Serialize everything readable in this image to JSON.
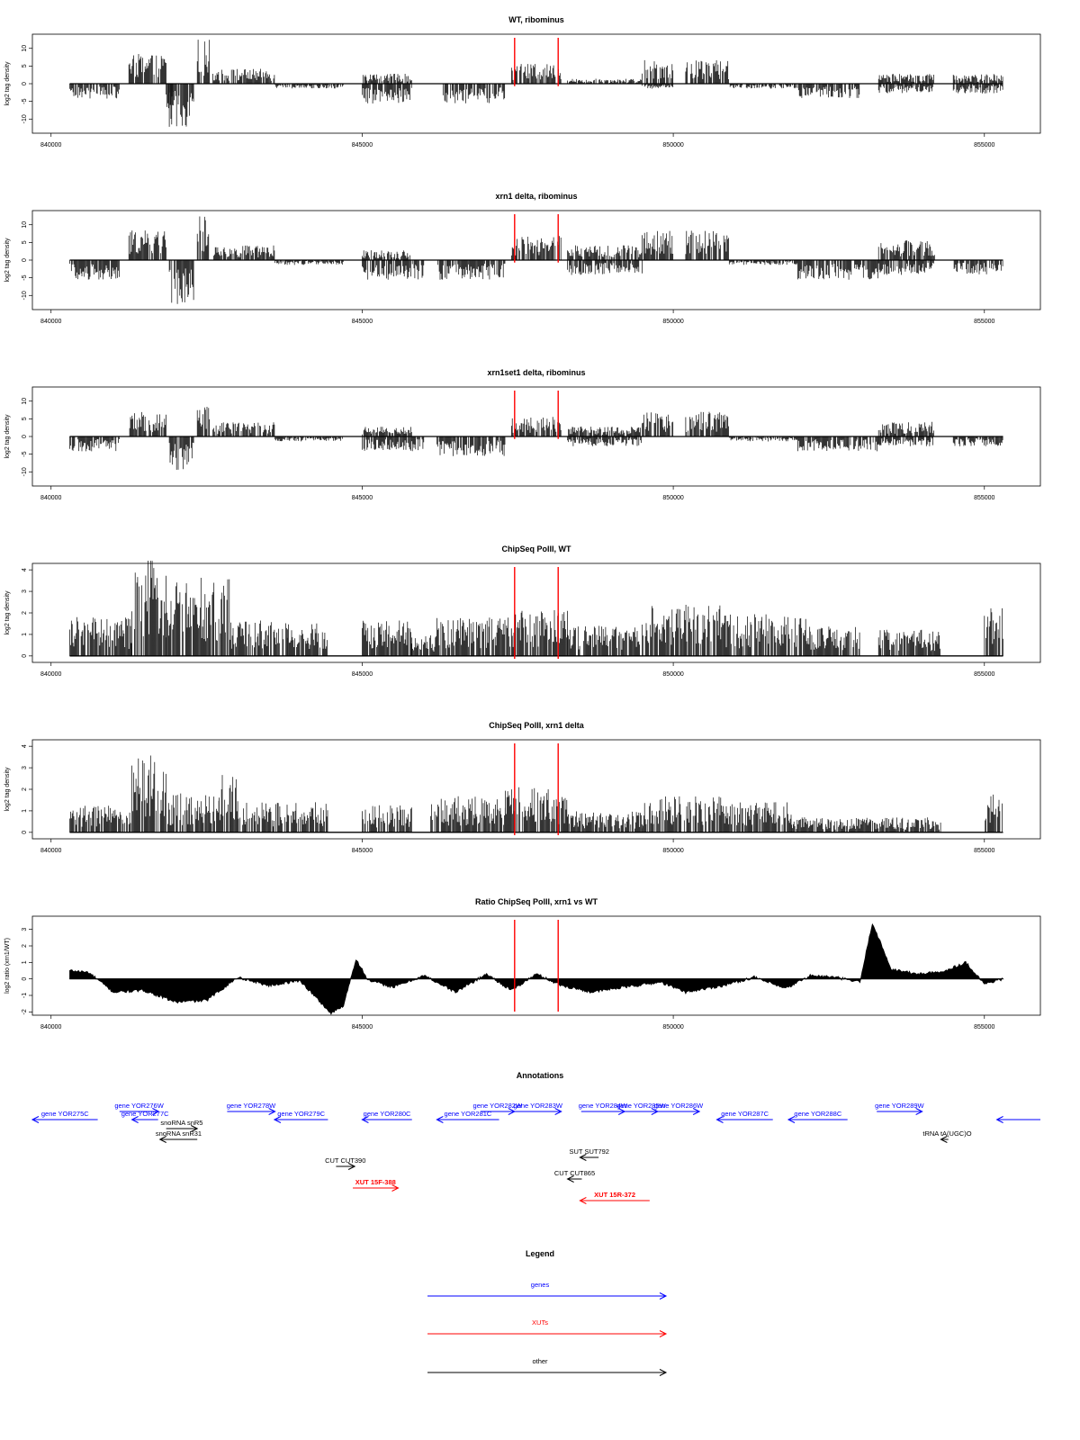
{
  "chart_data": {
    "xlim": [
      839700,
      855900
    ],
    "axis_ticks": [
      840000,
      845000,
      850000,
      855000
    ],
    "axis_tick_labels": [
      "840000",
      "845000",
      "850000",
      "855000"
    ],
    "data_range": [
      840300,
      855300
    ],
    "reference_lines": {
      "color": "#ff0000",
      "x": [
        847450,
        848150
      ]
    },
    "panels": [
      {
        "type": "bar",
        "title": "WT, ribominus",
        "ylabel": "log2 tag density",
        "ylim": [
          -14,
          14
        ],
        "yticks": [
          -10,
          -5,
          0,
          5,
          10
        ],
        "ytick_labels": [
          "-10",
          "-5",
          "0",
          "5",
          "10"
        ],
        "signal_segments": [
          {
            "start": 840300,
            "end": 841100,
            "value": -3
          },
          {
            "start": 841250,
            "end": 841850,
            "value": 6
          },
          {
            "start": 841850,
            "end": 842000,
            "value": -6
          },
          {
            "start": 841900,
            "end": 842300,
            "value": -9
          },
          {
            "start": 842350,
            "end": 842550,
            "value": 9
          },
          {
            "start": 842600,
            "end": 843600,
            "value": 3
          },
          {
            "start": 843600,
            "end": 844700,
            "value": -1
          },
          {
            "start": 845000,
            "end": 845800,
            "value": 2
          },
          {
            "start": 845000,
            "end": 845800,
            "value": -4
          },
          {
            "start": 846300,
            "end": 847300,
            "value": -4
          },
          {
            "start": 847400,
            "end": 848200,
            "value": 4
          },
          {
            "start": 848300,
            "end": 849500,
            "value": 1
          },
          {
            "start": 849500,
            "end": 850000,
            "value": 5
          },
          {
            "start": 849500,
            "end": 850000,
            "value": -1
          },
          {
            "start": 850200,
            "end": 850900,
            "value": 5
          },
          {
            "start": 850900,
            "end": 852000,
            "value": -1
          },
          {
            "start": 852000,
            "end": 853000,
            "value": -3
          },
          {
            "start": 853300,
            "end": 854200,
            "value": 2
          },
          {
            "start": 853300,
            "end": 854200,
            "value": -2
          },
          {
            "start": 854500,
            "end": 855300,
            "value": 2
          },
          {
            "start": 854500,
            "end": 855300,
            "value": -2
          }
        ]
      },
      {
        "type": "bar",
        "title": "xrn1 delta, ribominus",
        "ylabel": "log2 tag density",
        "ylim": [
          -14,
          14
        ],
        "yticks": [
          -10,
          -5,
          0,
          5,
          10
        ],
        "ytick_labels": [
          "-10",
          "-5",
          "0",
          "5",
          "10"
        ],
        "signal_segments": [
          {
            "start": 840300,
            "end": 841100,
            "value": -4
          },
          {
            "start": 841250,
            "end": 841850,
            "value": 6
          },
          {
            "start": 841900,
            "end": 842300,
            "value": -9
          },
          {
            "start": 842350,
            "end": 842550,
            "value": 9
          },
          {
            "start": 842600,
            "end": 843600,
            "value": 3
          },
          {
            "start": 843600,
            "end": 844700,
            "value": -1
          },
          {
            "start": 845000,
            "end": 845800,
            "value": 2
          },
          {
            "start": 845000,
            "end": 846000,
            "value": -4
          },
          {
            "start": 846200,
            "end": 847300,
            "value": -4
          },
          {
            "start": 847400,
            "end": 848200,
            "value": 5
          },
          {
            "start": 848300,
            "end": 849500,
            "value": 3
          },
          {
            "start": 848300,
            "end": 849500,
            "value": -3
          },
          {
            "start": 849500,
            "end": 850000,
            "value": 6
          },
          {
            "start": 850200,
            "end": 850900,
            "value": 6
          },
          {
            "start": 850900,
            "end": 852000,
            "value": -1
          },
          {
            "start": 852000,
            "end": 853300,
            "value": -4
          },
          {
            "start": 853300,
            "end": 854200,
            "value": 4
          },
          {
            "start": 853300,
            "end": 854200,
            "value": -3
          },
          {
            "start": 854500,
            "end": 855300,
            "value": -3
          }
        ]
      },
      {
        "type": "bar",
        "title": "xrn1set1 delta, ribominus",
        "ylabel": "log2 tag density",
        "ylim": [
          -14,
          14
        ],
        "yticks": [
          -10,
          -5,
          0,
          5,
          10
        ],
        "ytick_labels": [
          "-10",
          "-5",
          "0",
          "5",
          "10"
        ],
        "signal_segments": [
          {
            "start": 840300,
            "end": 841100,
            "value": -3
          },
          {
            "start": 841250,
            "end": 841850,
            "value": 5
          },
          {
            "start": 841900,
            "end": 842300,
            "value": -7
          },
          {
            "start": 842350,
            "end": 842550,
            "value": 7
          },
          {
            "start": 842600,
            "end": 843600,
            "value": 3
          },
          {
            "start": 843600,
            "end": 844700,
            "value": -1
          },
          {
            "start": 845000,
            "end": 845800,
            "value": 2
          },
          {
            "start": 845000,
            "end": 846000,
            "value": -3
          },
          {
            "start": 846200,
            "end": 847300,
            "value": -4
          },
          {
            "start": 847400,
            "end": 848200,
            "value": 4
          },
          {
            "start": 848300,
            "end": 849500,
            "value": 2
          },
          {
            "start": 848300,
            "end": 849500,
            "value": -2
          },
          {
            "start": 849500,
            "end": 850000,
            "value": 5
          },
          {
            "start": 850200,
            "end": 850900,
            "value": 5
          },
          {
            "start": 850900,
            "end": 852000,
            "value": -1
          },
          {
            "start": 852000,
            "end": 853300,
            "value": -3
          },
          {
            "start": 853300,
            "end": 854200,
            "value": 3
          },
          {
            "start": 853300,
            "end": 854200,
            "value": -2
          },
          {
            "start": 854500,
            "end": 855300,
            "value": -2
          }
        ]
      },
      {
        "type": "bar",
        "title": "ChipSeq PolII, WT",
        "ylabel": "log2 tag density",
        "ylim": [
          -0.3,
          4.3
        ],
        "yticks": [
          0,
          1,
          2,
          3,
          4
        ],
        "ytick_labels": [
          "0",
          "1",
          "2",
          "3",
          "4"
        ],
        "signal_segments": [
          {
            "start": 840300,
            "end": 841300,
            "value": 1.3
          },
          {
            "start": 841300,
            "end": 841850,
            "value": 3.2
          },
          {
            "start": 841850,
            "end": 842900,
            "value": 2.6
          },
          {
            "start": 842900,
            "end": 843800,
            "value": 1.2
          },
          {
            "start": 843800,
            "end": 844450,
            "value": 1.1
          },
          {
            "start": 845000,
            "end": 845800,
            "value": 1.2
          },
          {
            "start": 845800,
            "end": 846200,
            "value": 0.7
          },
          {
            "start": 846200,
            "end": 847400,
            "value": 1.3
          },
          {
            "start": 847400,
            "end": 848300,
            "value": 1.6
          },
          {
            "start": 848300,
            "end": 849500,
            "value": 1.0
          },
          {
            "start": 849500,
            "end": 850800,
            "value": 1.7
          },
          {
            "start": 850800,
            "end": 852200,
            "value": 1.4
          },
          {
            "start": 852200,
            "end": 853000,
            "value": 1.0
          },
          {
            "start": 853300,
            "end": 854300,
            "value": 0.9
          },
          {
            "start": 855000,
            "end": 855300,
            "value": 1.6
          }
        ]
      },
      {
        "type": "bar",
        "title": "ChipSeq PolII, xrn1 delta",
        "ylabel": "log2 tag density",
        "ylim": [
          -0.3,
          4.3
        ],
        "yticks": [
          0,
          1,
          2,
          3,
          4
        ],
        "ytick_labels": [
          "0",
          "1",
          "2",
          "3",
          "4"
        ],
        "signal_segments": [
          {
            "start": 840300,
            "end": 841300,
            "value": 0.9
          },
          {
            "start": 841300,
            "end": 841850,
            "value": 2.6
          },
          {
            "start": 841850,
            "end": 842700,
            "value": 1.3
          },
          {
            "start": 842700,
            "end": 843000,
            "value": 2.1
          },
          {
            "start": 843000,
            "end": 844450,
            "value": 1.0
          },
          {
            "start": 845000,
            "end": 845800,
            "value": 0.9
          },
          {
            "start": 846100,
            "end": 847300,
            "value": 1.2
          },
          {
            "start": 847300,
            "end": 848300,
            "value": 1.5
          },
          {
            "start": 848300,
            "end": 849500,
            "value": 0.7
          },
          {
            "start": 849500,
            "end": 850800,
            "value": 1.2
          },
          {
            "start": 850800,
            "end": 851900,
            "value": 1.0
          },
          {
            "start": 851900,
            "end": 854300,
            "value": 0.5
          },
          {
            "start": 855000,
            "end": 855300,
            "value": 1.3
          }
        ]
      },
      {
        "type": "area",
        "title": "Ratio ChipSeq PolII, xrn1 vs WT",
        "ylabel": "log2 ratio (xrn1/WT)",
        "ylim": [
          -2.2,
          3.8
        ],
        "yticks": [
          -2,
          -1,
          0,
          1,
          2,
          3
        ],
        "ytick_labels": [
          "-2",
          "-1",
          "0",
          "1",
          "2",
          "3"
        ],
        "x": [
          840300,
          840600,
          841000,
          841500,
          842000,
          842500,
          843000,
          843500,
          844000,
          844500,
          844700,
          844900,
          845100,
          845500,
          846000,
          846500,
          847000,
          847400,
          847800,
          848200,
          848700,
          849200,
          849800,
          850200,
          850800,
          851300,
          851800,
          852200,
          852600,
          853000,
          853200,
          853500,
          853900,
          854300,
          854700,
          855000,
          855300
        ],
        "y": [
          0.5,
          0.4,
          -0.8,
          -0.7,
          -1.4,
          -1.3,
          0.1,
          -0.4,
          -0.1,
          -2.1,
          -1.6,
          1.2,
          -0.1,
          -0.5,
          0.2,
          -0.8,
          0.3,
          -0.7,
          0.3,
          -0.4,
          -0.8,
          -0.5,
          -0.2,
          -0.8,
          -0.4,
          0.1,
          -0.6,
          0.2,
          0.1,
          -0.2,
          3.4,
          0.6,
          0.3,
          0.4,
          1.0,
          -0.3,
          0.0
        ]
      }
    ],
    "annotations": {
      "title": "Annotations",
      "features": [
        {
          "label": "gene YOR275C",
          "start": 839700,
          "end": 840750,
          "lane": 1,
          "dir": "left",
          "kind": "gene"
        },
        {
          "label": "gene YOR276W",
          "start": 841100,
          "end": 841730,
          "lane": 0,
          "dir": "right",
          "kind": "gene"
        },
        {
          "label": "gene YOR277C",
          "start": 841300,
          "end": 841720,
          "lane": 1,
          "dir": "left",
          "kind": "gene"
        },
        {
          "label": "gene YOR278W",
          "start": 842830,
          "end": 843600,
          "lane": 0,
          "dir": "right",
          "kind": "gene"
        },
        {
          "label": "gene YOR279C",
          "start": 843590,
          "end": 844450,
          "lane": 1,
          "dir": "left",
          "kind": "gene"
        },
        {
          "label": "gene YOR280C",
          "start": 845000,
          "end": 845800,
          "lane": 1,
          "dir": "left",
          "kind": "gene"
        },
        {
          "label": "gene YOR281C",
          "start": 846200,
          "end": 847200,
          "lane": 1,
          "dir": "left",
          "kind": "gene"
        },
        {
          "label": "gene YOR282W",
          "start": 846900,
          "end": 847450,
          "lane": 0,
          "dir": "right",
          "kind": "gene"
        },
        {
          "label": "gene YOR283W",
          "start": 847450,
          "end": 848200,
          "lane": 0,
          "dir": "right",
          "kind": "gene"
        },
        {
          "label": "gene YOR284W",
          "start": 848520,
          "end": 849220,
          "lane": 0,
          "dir": "right",
          "kind": "gene"
        },
        {
          "label": "gene YOR285W",
          "start": 849220,
          "end": 849750,
          "lane": 0,
          "dir": "right",
          "kind": "gene"
        },
        {
          "label": "gene YOR286W",
          "start": 849750,
          "end": 850420,
          "lane": 0,
          "dir": "right",
          "kind": "gene"
        },
        {
          "label": "gene YOR287C",
          "start": 850700,
          "end": 851600,
          "lane": 1,
          "dir": "left",
          "kind": "gene"
        },
        {
          "label": "gene YOR288C",
          "start": 851850,
          "end": 852800,
          "lane": 1,
          "dir": "left",
          "kind": "gene"
        },
        {
          "label": "gene YOR289W",
          "start": 853270,
          "end": 854000,
          "lane": 0,
          "dir": "right",
          "kind": "gene"
        },
        {
          "label": "",
          "start": 855200,
          "end": 855900,
          "lane": 1,
          "dir": "left",
          "kind": "gene"
        },
        {
          "label": "snoRNA snR5",
          "start": 841850,
          "end": 842350,
          "lane": 2,
          "dir": "right",
          "kind": "other"
        },
        {
          "label": "snoRNA snR31",
          "start": 841750,
          "end": 842350,
          "lane": 3,
          "dir": "left",
          "kind": "other"
        },
        {
          "label": "tRNA tA(UGC)O",
          "start": 854300,
          "end": 854420,
          "lane": 3,
          "dir": "left",
          "kind": "other"
        },
        {
          "label": "SUT SUT792",
          "start": 848500,
          "end": 848800,
          "lane": 4,
          "dir": "left",
          "kind": "other"
        },
        {
          "label": "CUT CUT390",
          "start": 844580,
          "end": 844880,
          "lane": 5,
          "dir": "right",
          "kind": "other"
        },
        {
          "label": "CUT CUT865",
          "start": 848300,
          "end": 848530,
          "lane": 6,
          "dir": "left",
          "kind": "other"
        },
        {
          "label": "XUT 15F-388",
          "start": 844850,
          "end": 845580,
          "lane": 7,
          "dir": "right",
          "kind": "xut"
        },
        {
          "label": "XUT 15R-372",
          "start": 848500,
          "end": 849620,
          "lane": 8,
          "dir": "left",
          "kind": "xut"
        }
      ]
    },
    "legend": {
      "title": "Legend",
      "entries": [
        {
          "label": "genes",
          "kind": "gene"
        },
        {
          "label": "XUTs",
          "kind": "xut"
        },
        {
          "label": "other",
          "kind": "other"
        }
      ]
    },
    "colors": {
      "gene": "#0000ff",
      "xut": "#ff0000",
      "other": "#000000",
      "signal": "#000000",
      "reference": "#ff0000"
    }
  }
}
